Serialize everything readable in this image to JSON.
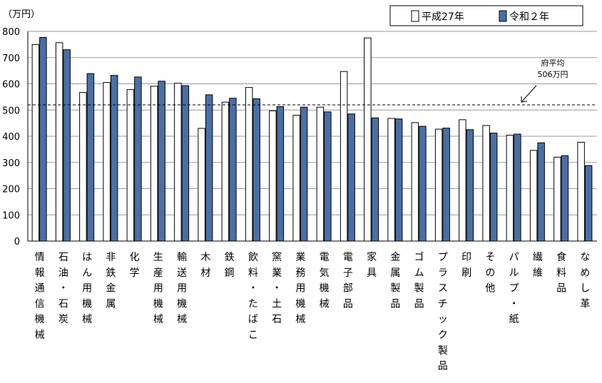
{
  "chart_data": {
    "type": "bar",
    "y_unit": "（万円）",
    "ylim": [
      0,
      800
    ],
    "y_ticks": [
      0,
      100,
      200,
      300,
      400,
      500,
      600,
      700,
      800
    ],
    "grid": true,
    "legend_position": "top-right",
    "categories": [
      "情報通信機械",
      "石油・石炭",
      "はん用機械",
      "非鉄金属",
      "化学",
      "生産用機械",
      "輸送用機械",
      "木材",
      "鉄鋼",
      "飲料・たばこ",
      "窯業・土石",
      "業務用機械",
      "電気機械",
      "電子部品",
      "家具",
      "金属製品",
      "ゴム製品",
      "プラスチック製品",
      "印刷",
      "その他",
      "パルプ・紙",
      "繊維",
      "食料品",
      "なめし革"
    ],
    "series": [
      {
        "name": "平成27年",
        "color": "#ffffff",
        "values": [
          750,
          757,
          567,
          605,
          578,
          591,
          602,
          430,
          530,
          586,
          497,
          480,
          511,
          647,
          775,
          468,
          452,
          427,
          463,
          441,
          404,
          346,
          320,
          377
        ]
      },
      {
        "name": "令和２年",
        "color": "#4a6fa5",
        "values": [
          777,
          730,
          639,
          632,
          626,
          610,
          593,
          558,
          545,
          543,
          513,
          511,
          493,
          485,
          470,
          466,
          438,
          431,
          425,
          412,
          408,
          375,
          326,
          288
        ]
      }
    ],
    "reference_line": {
      "value": 506,
      "label_line1": "府平均",
      "label_line2": "506万円"
    }
  }
}
